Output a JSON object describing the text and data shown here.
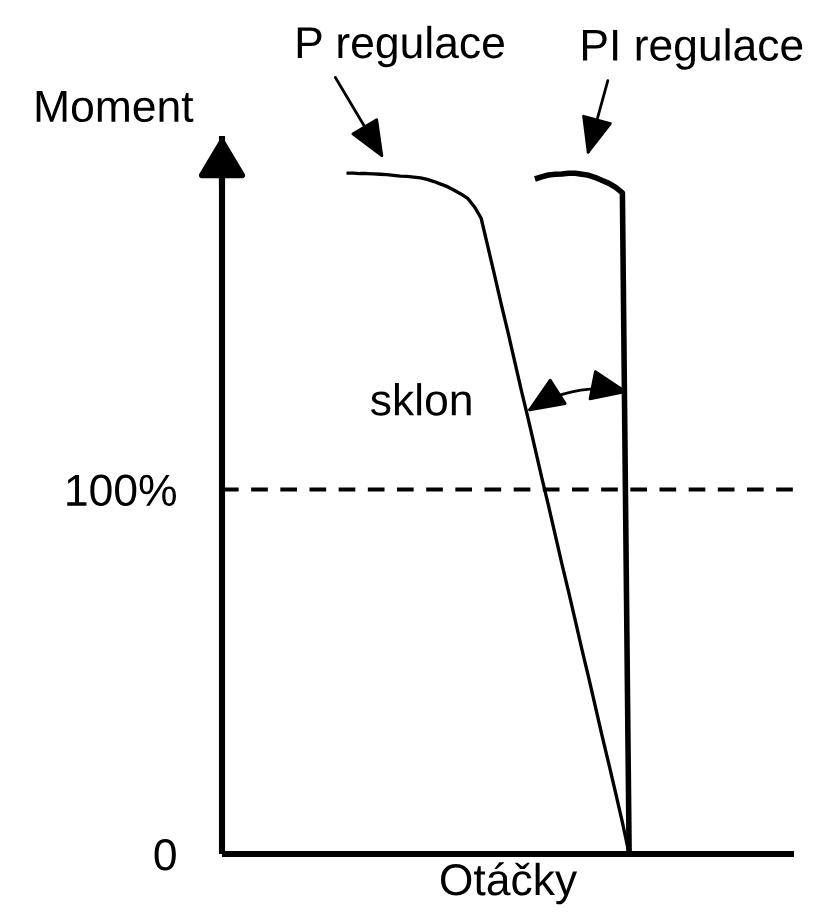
{
  "chart_data": {
    "type": "line",
    "xlabel": "Otáčky",
    "ylabel": "Moment",
    "ylim": [
      0,
      197
    ],
    "yticks": [
      0,
      {
        "value": 100,
        "label": "100%"
      }
    ],
    "tick_labels": "y",
    "grid": false,
    "marker": "none",
    "line_style": "solid",
    "categories": [
      null,
      null,
      null,
      null,
      null,
      null,
      null,
      null,
      null,
      null,
      null,
      null,
      null,
      null,
      null,
      null,
      null,
      null,
      null,
      null,
      null,
      null,
      null,
      null,
      null,
      null,
      null,
      null,
      null,
      null,
      null,
      null,
      null,
      null,
      null,
      null,
      null,
      null,
      null,
      null,
      null,
      null,
      null,
      null,
      null,
      null,
      null,
      null,
      null,
      null,
      null,
      null,
      null,
      null,
      null,
      null,
      null,
      null,
      null,
      null,
      null,
      null,
      null,
      null,
      null,
      null,
      null,
      null,
      null,
      null,
      null,
      null,
      null,
      null,
      null,
      null,
      null,
      null,
      null,
      null,
      null,
      null,
      null,
      null,
      null
    ],
    "series": [
      {
        "name": "P regulace",
        "color": "#000000",
        "values": [
          null,
          null,
          null,
          null,
          null,
          null,
          null,
          null,
          null,
          null,
          null,
          null,
          null,
          null,
          null,
          null,
          null,
          null,
          186.8,
          186.8,
          186.7,
          186.7,
          186.6,
          186.5,
          186.4,
          186.2,
          186.0,
          185.9,
          185.7,
          185.5,
          185.1,
          184.5,
          183.8,
          183.1,
          182.1,
          181.1,
          179.9,
          177.6,
          174.5,
          166.7,
          158.8,
          150.8,
          143.1,
          135.1,
          127.1,
          119.4,
          111.4,
          103.4,
          95.7,
          87.7,
          79.7,
          72,
          64,
          56,
          48.3,
          40.3,
          32.3,
          24.6,
          16.7,
          8.7,
          0,
          null,
          null,
          null,
          null,
          null,
          null,
          null,
          null,
          null,
          null,
          null,
          null,
          null,
          null,
          null,
          null,
          null,
          null,
          null,
          null,
          null,
          null,
          null,
          null
        ]
      },
      {
        "name": "PI regulace",
        "color": "#000000",
        "values": [
          null,
          null,
          null,
          null,
          null,
          null,
          null,
          null,
          null,
          null,
          null,
          null,
          null,
          null,
          null,
          null,
          null,
          null,
          null,
          null,
          null,
          null,
          null,
          null,
          null,
          null,
          null,
          null,
          null,
          null,
          null,
          null,
          null,
          null,
          null,
          null,
          null,
          null,
          null,
          null,
          null,
          null,
          null,
          null,
          null,
          null,
          185.2,
          185.8,
          186.3,
          186.5,
          186.6,
          186.8,
          186.8,
          186.5,
          186.2,
          185.6,
          184.8,
          184.0,
          182.9,
          181.4,
          0,
          null,
          null,
          null,
          null,
          null,
          null,
          null,
          null,
          null,
          null,
          null,
          null,
          null,
          null,
          null,
          null,
          null,
          null,
          null,
          null,
          null,
          null,
          null,
          null
        ]
      }
    ],
    "ref_lines": [
      {
        "axis": "y",
        "value": 100,
        "color": "#000000",
        "line_style": "dashed"
      }
    ],
    "annotations": [
      "sklon"
    ]
  }
}
